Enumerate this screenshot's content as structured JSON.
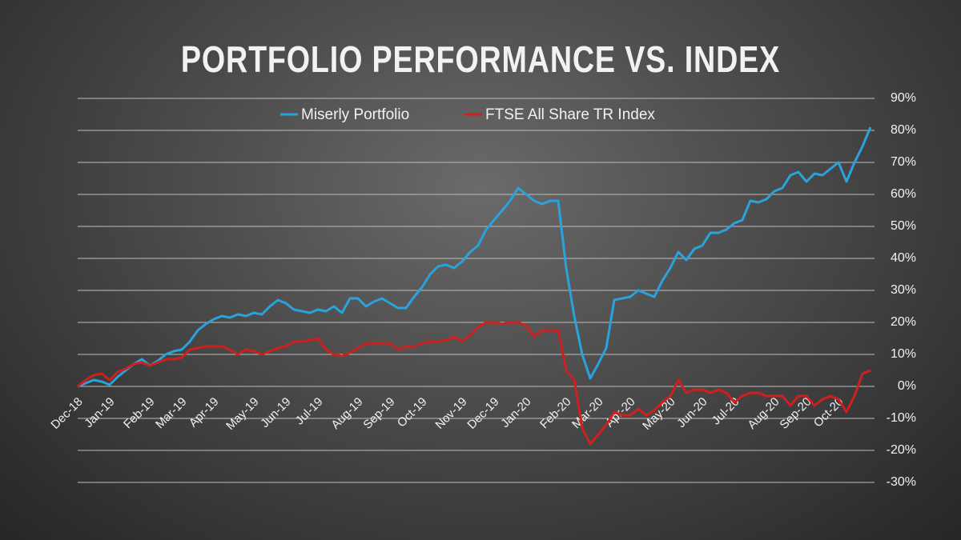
{
  "chart_data": {
    "type": "line",
    "title": "PORTFOLIO PERFORMANCE VS. INDEX",
    "categories": [
      "Dec-18",
      null,
      null,
      null,
      "Jan-19",
      null,
      null,
      null,
      null,
      "Feb-19",
      null,
      null,
      null,
      "Mar-19",
      null,
      null,
      null,
      "Apr-19",
      null,
      null,
      null,
      null,
      "May-19",
      null,
      null,
      null,
      "Jun-19",
      null,
      null,
      null,
      "Jul-19",
      null,
      null,
      null,
      null,
      "Aug-19",
      null,
      null,
      null,
      "Sep-19",
      null,
      null,
      null,
      "Oct-19",
      null,
      null,
      null,
      null,
      "Nov-19",
      null,
      null,
      null,
      "Dec-19",
      null,
      null,
      null,
      "Jan-20",
      null,
      null,
      null,
      null,
      "Feb-20",
      null,
      null,
      null,
      "Mar-20",
      null,
      null,
      null,
      "Apr-20",
      null,
      null,
      null,
      null,
      "May-20",
      null,
      null,
      null,
      "Jun-20",
      null,
      null,
      null,
      "Jul-20",
      null,
      null,
      null,
      null,
      "Aug-20",
      null,
      null,
      null,
      "Sep-20",
      null,
      null,
      null,
      "Oct-20",
      null,
      null,
      null,
      null
    ],
    "series": [
      {
        "name": "Miserly Portfolio",
        "color": "#2aa3dc",
        "values": [
          0,
          1,
          2,
          1.5,
          0.5,
          3,
          5,
          7,
          8.5,
          6.5,
          8,
          10,
          11,
          11.5,
          14,
          17.5,
          19.5,
          21,
          22,
          21.5,
          22.5,
          22,
          23,
          22.5,
          25,
          27,
          26,
          24,
          23.5,
          23,
          24,
          23.5,
          25,
          23,
          27.5,
          27.5,
          25,
          26.5,
          27.5,
          26,
          24.5,
          24.5,
          28,
          31,
          35,
          37.5,
          38,
          37,
          39,
          42,
          44,
          49,
          52,
          55,
          58,
          62,
          60,
          58,
          57,
          58,
          58,
          37,
          22,
          10,
          2.5,
          7,
          12,
          27,
          27.5,
          28,
          30,
          29,
          28,
          33,
          37,
          42,
          39.5,
          43,
          44,
          48,
          48,
          49,
          51,
          52,
          58,
          57.5,
          58.5,
          61,
          62,
          66,
          67,
          64,
          66.5,
          66,
          68,
          70,
          64,
          70,
          75,
          81
        ]
      },
      {
        "name": "FTSE All Share TR Index",
        "color": "#d01f1f",
        "values": [
          0,
          2,
          3.5,
          4,
          2,
          4.5,
          5.5,
          7,
          7.5,
          6.5,
          7.5,
          8.5,
          8.5,
          9,
          11.5,
          12,
          12.5,
          12.5,
          12.5,
          11.5,
          10,
          11.5,
          11,
          10,
          11,
          12,
          12.5,
          14,
          14,
          14.5,
          15,
          11.5,
          10,
          9.5,
          10.5,
          12,
          13.5,
          13.5,
          13.5,
          13.5,
          11.5,
          12.5,
          12.5,
          13.5,
          14,
          14,
          14.5,
          15.5,
          14,
          16,
          18.5,
          20,
          20,
          19.5,
          20,
          20,
          19,
          15.5,
          17.5,
          17.5,
          17.5,
          5,
          2,
          -13,
          -18,
          -15,
          -12,
          -8,
          -9,
          -9,
          -7,
          -9,
          -7.5,
          -5,
          -3,
          2,
          -2,
          -1,
          -1,
          -2,
          -1,
          -2,
          -5,
          -3,
          -2,
          -2,
          -3,
          -3,
          -3,
          -6,
          -3,
          -3,
          -6,
          -4,
          -3,
          -4,
          -8,
          -3,
          4,
          5
        ]
      }
    ],
    "ylim": [
      -30,
      90
    ],
    "yticks": [
      {
        "value": -30,
        "label": "-30%"
      },
      {
        "value": -20,
        "label": "-20%"
      },
      {
        "value": -10,
        "label": "-10%"
      },
      {
        "value": 0,
        "label": "0%"
      },
      {
        "value": 10,
        "label": "10%"
      },
      {
        "value": 20,
        "label": "20%"
      },
      {
        "value": 30,
        "label": "30%"
      },
      {
        "value": 40,
        "label": "40%"
      },
      {
        "value": 50,
        "label": "50%"
      },
      {
        "value": 60,
        "label": "60%"
      },
      {
        "value": 70,
        "label": "70%"
      },
      {
        "value": 80,
        "label": "80%"
      },
      {
        "value": 90,
        "label": "90%"
      }
    ],
    "grid": true,
    "legend": "top"
  }
}
